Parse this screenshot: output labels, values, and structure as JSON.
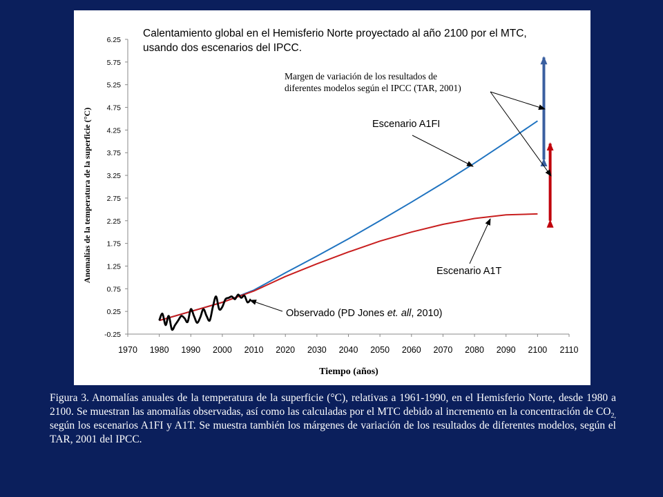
{
  "chart_data": {
    "type": "line",
    "title": "Calentamiento global  en el Hemisferio Norte proyectado al año 2100 por el  MTC,",
    "subtitle": "usando dos escenarios  del IPCC.",
    "xlabel": "Tiempo (años)",
    "ylabel": "Anomalías de la temperatura de la superficie (°C)",
    "xlim": [
      1970,
      2110
    ],
    "ylim": [
      -0.25,
      6.25
    ],
    "xticks": [
      "1970",
      "1980",
      "1990",
      "2000",
      "2010",
      "2020",
      "2030",
      "2040",
      "2050",
      "2060",
      "2070",
      "2080",
      "2090",
      "2100",
      "2110"
    ],
    "yticks": [
      "-0.25",
      "0.25",
      "0.75",
      "1.25",
      "1.75",
      "2.25",
      "2.75",
      "3.25",
      "3.75",
      "4.25",
      "4.75",
      "5.25",
      "5.75",
      "6.25"
    ],
    "grid": false,
    "series": [
      {
        "name": "Escenario A1FI",
        "color": "#1f73c0",
        "x": [
          1980,
          1990,
          2000,
          2010,
          2020,
          2030,
          2040,
          2050,
          2060,
          2070,
          2080,
          2090,
          2100
        ],
        "y": [
          0.05,
          0.25,
          0.45,
          0.72,
          1.1,
          1.47,
          1.85,
          2.25,
          2.66,
          3.08,
          3.52,
          3.98,
          4.45
        ]
      },
      {
        "name": "Escenario A1T",
        "color": "#c81e1e",
        "x": [
          1980,
          1990,
          2000,
          2010,
          2020,
          2030,
          2040,
          2050,
          2060,
          2070,
          2080,
          2090,
          2100
        ],
        "y": [
          0.05,
          0.25,
          0.45,
          0.7,
          1.02,
          1.3,
          1.56,
          1.8,
          2.0,
          2.17,
          2.3,
          2.38,
          2.4
        ]
      },
      {
        "name": "Observado (PD Jones et. all, 2010)",
        "color": "#000000",
        "x": [
          1980,
          1981,
          1982,
          1983,
          1984,
          1985,
          1986,
          1987,
          1988,
          1989,
          1990,
          1991,
          1992,
          1993,
          1994,
          1995,
          1996,
          1997,
          1998,
          1999,
          2000,
          2001,
          2002,
          2003,
          2004,
          2005,
          2006,
          2007,
          2008,
          2009
        ],
        "y": [
          0.05,
          0.2,
          -0.05,
          0.15,
          -0.15,
          -0.05,
          0.05,
          0.15,
          0.1,
          0.02,
          0.3,
          0.15,
          0.0,
          0.12,
          0.3,
          0.15,
          0.05,
          0.35,
          0.58,
          0.3,
          0.35,
          0.52,
          0.55,
          0.58,
          0.52,
          0.62,
          0.55,
          0.6,
          0.45,
          0.52
        ]
      }
    ],
    "ranges": [
      {
        "label": "A1FI",
        "x": 2102,
        "y_top": 5.85,
        "y_bottom": 3.6,
        "color": "#3a5fa0"
      },
      {
        "label": "A1T",
        "x": 2104,
        "y_top": 3.95,
        "y_bottom": 2.25,
        "color": "#c0000b"
      }
    ],
    "annotations": {
      "range_label_line1": "Margen de variación de los resultados  de",
      "range_label_line2": "diferentes modelos según el IPCC  (TAR, 2001)",
      "a1fi_label": "Escenario A1FI",
      "a1t_label": "Escenario A1T",
      "observed_prefix": "Observado (PD Jones ",
      "observed_italic": "et. all",
      "observed_suffix": ", 2010)"
    }
  },
  "caption": {
    "part1": "Figura 3. Anomalías anuales de la temperatura de la superficie (°C), relativas a 1961-1990, en el Hemisferio Norte, desde 1980 a 2100. Se muestran las anomalías observadas, así como las calculadas por el MTC debido al incremento en la concentración de CO",
    "sub": "2,",
    "part2": " según los escenarios A1FI y A1T. Se muestra también los márgenes de variación de los resultados de diferentes modelos, según el TAR, 2001 del IPCC."
  }
}
